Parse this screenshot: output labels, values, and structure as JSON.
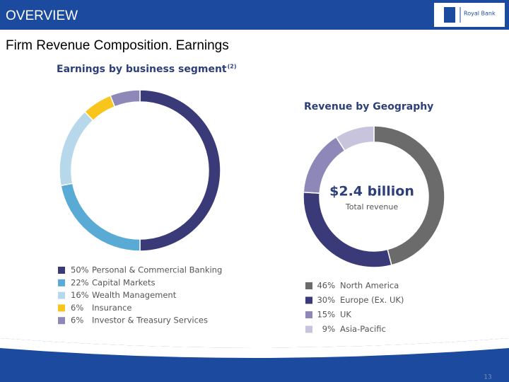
{
  "header": {
    "title": "OVERVIEW",
    "logo": "Royal Bank"
  },
  "subtitle": "Firm Revenue Composition. Earnings",
  "page_number": "13",
  "chart_data": [
    {
      "type": "donut",
      "title": "Earnings by business segment",
      "title_note": "(2)",
      "categories": [
        "Personal & Commercial Banking",
        "Capital Markets",
        "Wealth Management",
        "Insurance",
        "Investor & Treasury Services"
      ],
      "values": [
        50,
        22,
        16,
        6,
        6
      ],
      "value_labels": [
        "50%",
        "22%",
        "16%",
        "6%",
        "6%"
      ],
      "colors": [
        "#3a3a78",
        "#5aaad6",
        "#b7d7ea",
        "#f7c51b",
        "#8d88b8"
      ]
    },
    {
      "type": "donut",
      "title": "Revenue by Geography",
      "center_value": "$2.4 billion",
      "center_label": "Total revenue",
      "categories": [
        "North America",
        "Europe (Ex. UK)",
        "UK",
        "Asia-Pacific"
      ],
      "values": [
        46,
        30,
        15,
        9
      ],
      "value_labels": [
        "46%",
        "30%",
        "15%",
        "9%"
      ],
      "colors": [
        "#6b6b6b",
        "#3a3a78",
        "#8d88b8",
        "#c9c4dd"
      ]
    }
  ]
}
